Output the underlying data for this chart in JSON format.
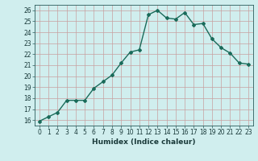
{
  "x": [
    0,
    1,
    2,
    3,
    4,
    5,
    6,
    7,
    8,
    9,
    10,
    11,
    12,
    13,
    14,
    15,
    16,
    17,
    18,
    19,
    20,
    21,
    22,
    23
  ],
  "y": [
    15.9,
    16.3,
    16.7,
    17.8,
    17.8,
    17.8,
    18.9,
    19.5,
    20.1,
    21.2,
    22.2,
    22.4,
    25.6,
    26.0,
    25.3,
    25.2,
    25.8,
    24.7,
    24.8,
    23.4,
    22.6,
    22.1,
    21.2,
    21.1
  ],
  "line_color": "#1a6b5a",
  "marker": "D",
  "marker_size": 2.0,
  "bg_color": "#d0eeee",
  "grid_color": "#c8a0a0",
  "xlabel": "Humidex (Indice chaleur)",
  "xlim": [
    -0.5,
    23.5
  ],
  "ylim": [
    15.5,
    26.5
  ],
  "yticks": [
    16,
    17,
    18,
    19,
    20,
    21,
    22,
    23,
    24,
    25,
    26
  ],
  "xticks": [
    0,
    1,
    2,
    3,
    4,
    5,
    6,
    7,
    8,
    9,
    10,
    11,
    12,
    13,
    14,
    15,
    16,
    17,
    18,
    19,
    20,
    21,
    22,
    23
  ],
  "xlabel_fontsize": 6.5,
  "tick_fontsize": 5.5,
  "line_width": 1.0
}
